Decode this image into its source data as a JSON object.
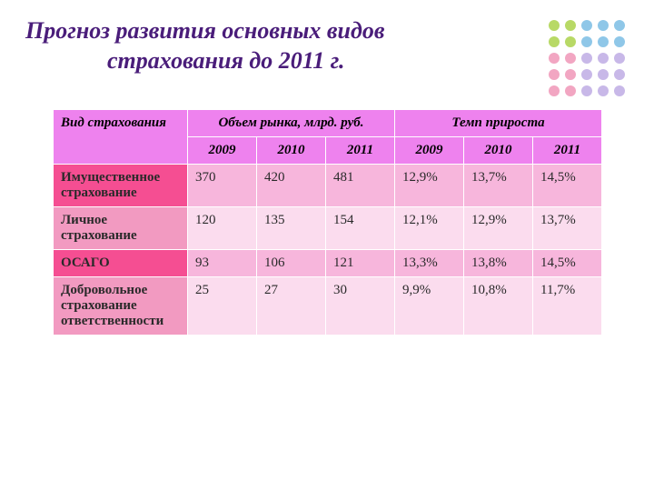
{
  "title_line1": "Прогноз развития основных видов",
  "title_line2": "страхования до 2011 г.",
  "colors": {
    "title_color": "#4a1d7a",
    "header_bg": "#ee82ee",
    "row_odd_label": "#f54e92",
    "row_even_label": "#f29ac1",
    "row_odd_cell": "#f7b6dc",
    "row_even_cell": "#fbdcee",
    "text_dark": "#2a2a2a",
    "border": "#ffffff"
  },
  "dot_grid": {
    "colors": [
      "#b8d966",
      "#b8d966",
      "#8fc7e8",
      "#8fc7e8",
      "#8fc7e8",
      "#b8d966",
      "#b8d966",
      "#8fc7e8",
      "#8fc7e8",
      "#8fc7e8",
      "#f2a6c2",
      "#f2a6c2",
      "#c8b8e8",
      "#c8b8e8",
      "#c8b8e8",
      "#f2a6c2",
      "#f2a6c2",
      "#c8b8e8",
      "#c8b8e8",
      "#c8b8e8",
      "#f2a6c2",
      "#f2a6c2",
      "#c8b8e8",
      "#c8b8e8",
      "#c8b8e8"
    ]
  },
  "table": {
    "type": "table",
    "header": {
      "row_label": "Вид страхования",
      "group1": "Объем рынка, млрд. руб.",
      "group2": "Темп прироста",
      "years_g1": [
        "2009",
        "2010",
        "2011"
      ],
      "years_g2": [
        "2009",
        "2010",
        "2011"
      ]
    },
    "rows": [
      {
        "label": "Имущественное страхование",
        "vol": [
          "370",
          "420",
          "481"
        ],
        "rate": [
          "12,9%",
          "13,7%",
          "14,5%"
        ]
      },
      {
        "label": "Личное страхование",
        "vol": [
          "120",
          "135",
          "154"
        ],
        "rate": [
          "12,1%",
          "12,9%",
          "13,7%"
        ]
      },
      {
        "label": "ОСАГО",
        "vol": [
          "93",
          "106",
          "121"
        ],
        "rate": [
          "13,3%",
          "13,8%",
          "14,5%"
        ]
      },
      {
        "label": "Добровольное страхование ответственности",
        "vol": [
          "25",
          "27",
          "30"
        ],
        "rate": [
          "9,9%",
          "10,8%",
          "11,7%"
        ]
      }
    ]
  }
}
